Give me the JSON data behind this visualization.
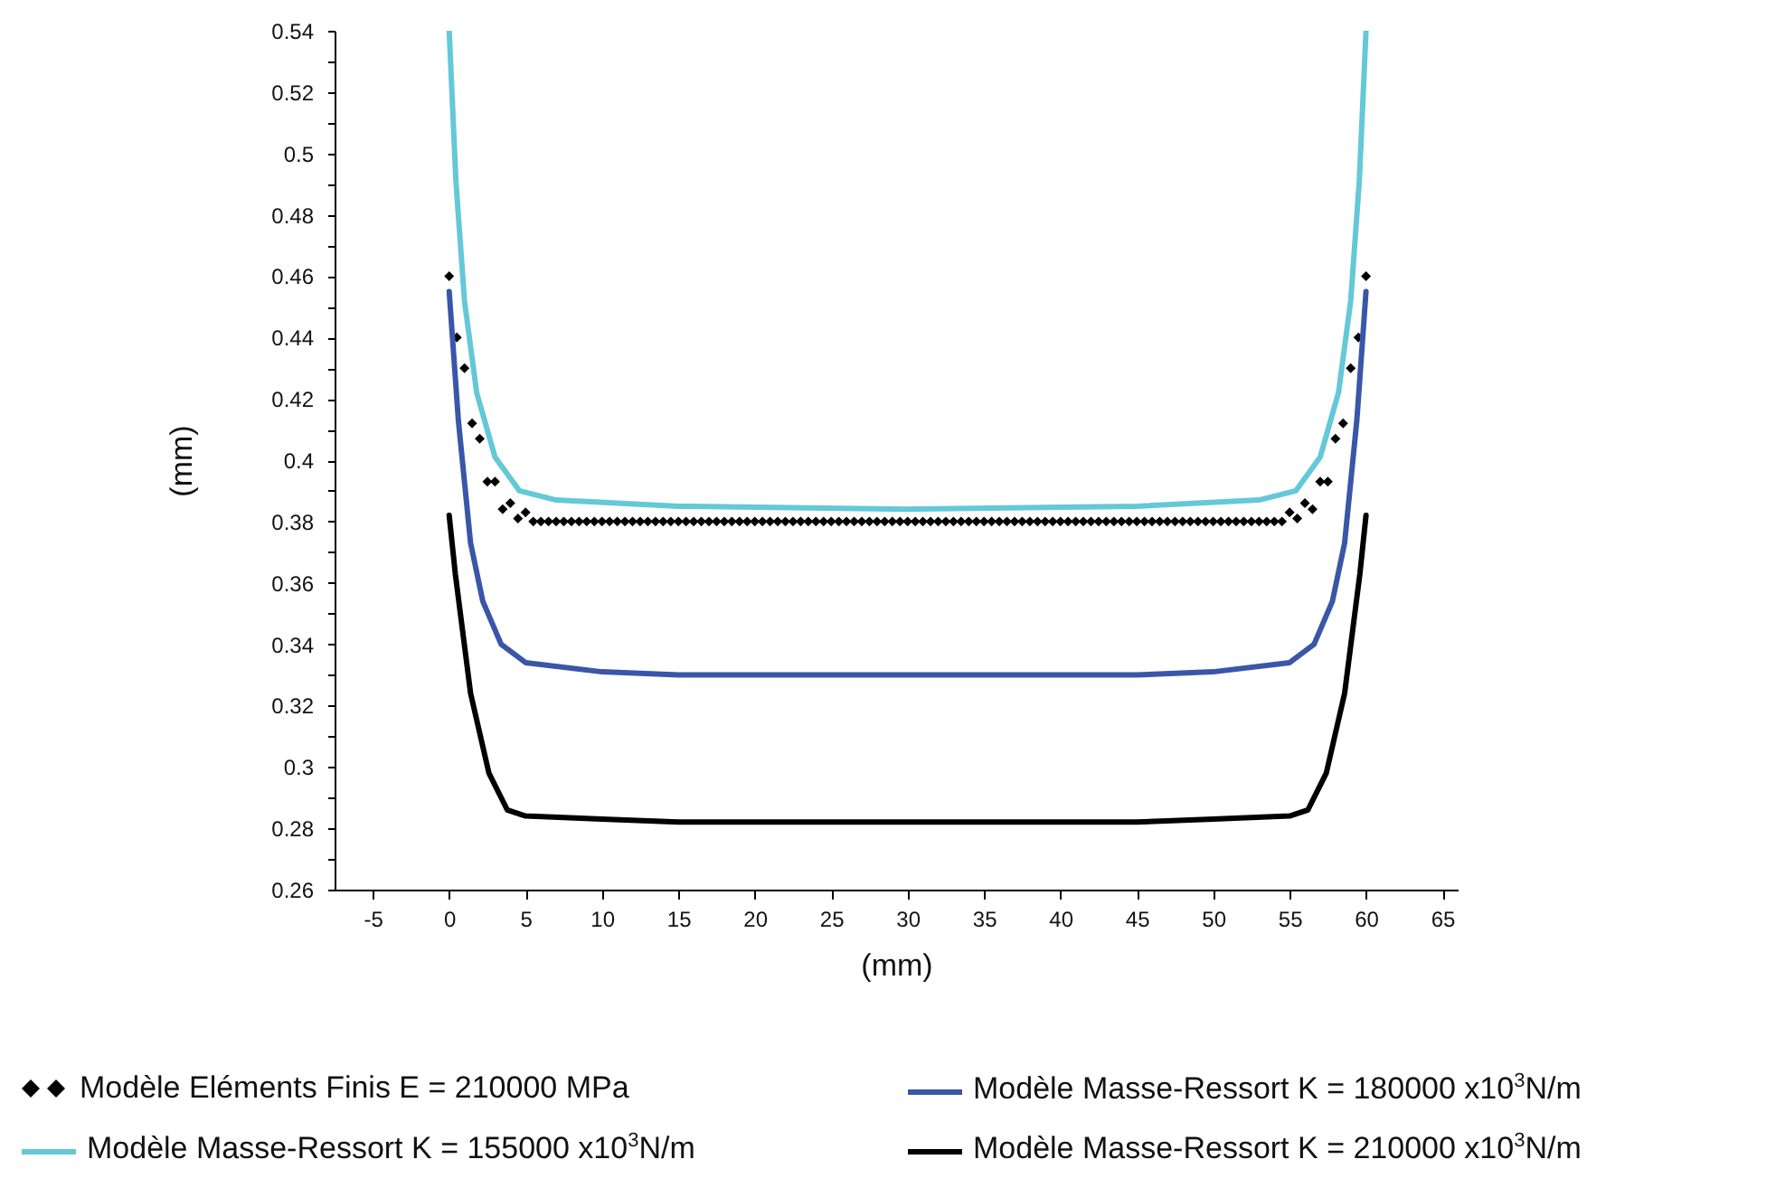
{
  "chart_data": {
    "type": "line",
    "xlabel": "(mm)",
    "ylabel": "(mm)",
    "xlim": [
      -7.5,
      66
    ],
    "xticks": [
      -5,
      0,
      5,
      10,
      15,
      20,
      25,
      30,
      35,
      40,
      45,
      50,
      55,
      60,
      65
    ],
    "ylim": [
      0.26,
      0.54
    ],
    "yticks": [
      0.26,
      {
        "value": 0.27,
        "label": null
      },
      0.28,
      {
        "value": 0.29,
        "label": null
      },
      0.3,
      {
        "value": 0.31,
        "label": null
      },
      0.32,
      {
        "value": 0.33,
        "label": null
      },
      0.34,
      {
        "value": 0.35,
        "label": null
      },
      0.36,
      {
        "value": 0.37,
        "label": null
      },
      0.38,
      {
        "value": 0.39,
        "label": null
      },
      0.4,
      {
        "value": 0.41,
        "label": null
      },
      0.42,
      {
        "value": 0.43,
        "label": null
      },
      0.44,
      {
        "value": 0.45,
        "label": null
      },
      0.46,
      {
        "value": 0.47,
        "label": null
      },
      0.48,
      {
        "value": 0.49,
        "label": null
      },
      0.5,
      {
        "value": 0.51,
        "label": null
      },
      0.52,
      {
        "value": 0.53,
        "label": null
      },
      0.54
    ],
    "grid": false,
    "legend": "bottom",
    "series": [
      {
        "name": "Modèle Eléments Finis E = 210000 MPa",
        "type": "scatter",
        "marker": "diamond",
        "color": "#000000",
        "x": [
          0,
          0.5,
          1,
          1.5,
          2,
          2.5,
          3,
          3.5,
          4,
          4.5,
          5,
          5.5,
          6,
          6.5,
          7,
          7.5,
          8,
          8.5,
          9,
          9.5,
          10,
          10.5,
          11,
          11.5,
          12,
          12.5,
          13,
          13.5,
          14,
          14.5,
          15,
          15.5,
          16,
          16.5,
          17,
          17.5,
          18,
          18.5,
          19,
          19.5,
          20,
          20.5,
          21,
          21.5,
          22,
          22.5,
          23,
          23.5,
          24,
          24.5,
          25,
          25.5,
          26,
          26.5,
          27,
          27.5,
          28,
          28.5,
          29,
          29.5,
          30,
          30.5,
          31,
          31.5,
          32,
          32.5,
          33,
          33.5,
          34,
          34.5,
          35,
          35.5,
          36,
          36.5,
          37,
          37.5,
          38,
          38.5,
          39,
          39.5,
          40,
          40.5,
          41,
          41.5,
          42,
          42.5,
          43,
          43.5,
          44,
          44.5,
          45,
          45.5,
          46,
          46.5,
          47,
          47.5,
          48,
          48.5,
          49,
          49.5,
          50,
          50.5,
          51,
          51.5,
          52,
          52.5,
          53,
          53.5,
          54,
          54.5,
          55,
          55.5,
          56,
          56.5,
          57,
          57.5,
          58,
          58.5,
          59,
          59.5,
          60
        ],
        "values": [
          0.46,
          0.44,
          0.43,
          0.412,
          0.407,
          0.393,
          0.393,
          0.384,
          0.386,
          0.381,
          0.383,
          0.38,
          0.38,
          0.38,
          0.38,
          0.38,
          0.38,
          0.38,
          0.38,
          0.38,
          0.38,
          0.38,
          0.38,
          0.38,
          0.38,
          0.38,
          0.38,
          0.38,
          0.38,
          0.38,
          0.38,
          0.38,
          0.38,
          0.38,
          0.38,
          0.38,
          0.38,
          0.38,
          0.38,
          0.38,
          0.38,
          0.38,
          0.38,
          0.38,
          0.38,
          0.38,
          0.38,
          0.38,
          0.38,
          0.38,
          0.38,
          0.38,
          0.38,
          0.38,
          0.38,
          0.38,
          0.38,
          0.38,
          0.38,
          0.38,
          0.38,
          0.38,
          0.38,
          0.38,
          0.38,
          0.38,
          0.38,
          0.38,
          0.38,
          0.38,
          0.38,
          0.38,
          0.38,
          0.38,
          0.38,
          0.38,
          0.38,
          0.38,
          0.38,
          0.38,
          0.38,
          0.38,
          0.38,
          0.38,
          0.38,
          0.38,
          0.38,
          0.38,
          0.38,
          0.38,
          0.38,
          0.38,
          0.38,
          0.38,
          0.38,
          0.38,
          0.38,
          0.38,
          0.38,
          0.38,
          0.38,
          0.38,
          0.38,
          0.38,
          0.38,
          0.38,
          0.38,
          0.38,
          0.38,
          0.38,
          0.383,
          0.381,
          0.386,
          0.384,
          0.393,
          0.393,
          0.407,
          0.412,
          0.43,
          0.44,
          0.46
        ]
      },
      {
        "name": "Modèle Masse-Ressort K = 180000 x10$^{3}$N/m",
        "color": "#3a56a8",
        "x": [
          0,
          0.6,
          1.4,
          2.2,
          3.4,
          5,
          10,
          15,
          30,
          45,
          50,
          55,
          56.6,
          57.8,
          58.6,
          59.4,
          60
        ],
        "values": [
          0.455,
          0.413,
          0.373,
          0.354,
          0.34,
          0.334,
          0.331,
          0.33,
          0.33,
          0.33,
          0.331,
          0.334,
          0.34,
          0.354,
          0.373,
          0.413,
          0.455
        ]
      },
      {
        "name": "Modèle Masse-Ressort K = 155000 x10$^{3}$N/m",
        "color": "#64c8d8",
        "x": [
          0,
          0.44,
          1,
          1.8,
          3,
          4.6,
          7,
          15,
          30,
          45,
          53,
          55.4,
          57,
          58.2,
          59,
          59.56,
          60
        ],
        "values": [
          0.54,
          0.491,
          0.452,
          0.422,
          0.401,
          0.39,
          0.387,
          0.385,
          0.384,
          0.385,
          0.387,
          0.39,
          0.401,
          0.422,
          0.452,
          0.491,
          0.54
        ]
      },
      {
        "name": "Modèle Masse-Ressort K = 210000 x10$^{3}$N/m",
        "color": "#000000",
        "x": [
          0,
          0.4,
          1.4,
          2.6,
          3.8,
          5,
          10,
          15,
          30,
          45,
          50,
          55,
          56.2,
          57.4,
          58.6,
          59.6,
          60
        ],
        "values": [
          0.382,
          0.363,
          0.324,
          0.298,
          0.286,
          0.284,
          0.283,
          0.282,
          0.282,
          0.282,
          0.283,
          0.284,
          0.286,
          0.298,
          0.324,
          0.363,
          0.382
        ]
      }
    ]
  }
}
